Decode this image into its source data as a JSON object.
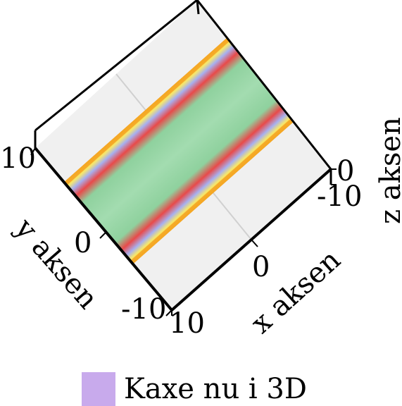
{
  "chart_data": {
    "type": "surface",
    "title": "",
    "xlabel": "x aksen",
    "ylabel": "y aksen",
    "zlabel": "z aksen",
    "xlim": [
      -10,
      10
    ],
    "ylim": [
      -10,
      10
    ],
    "zlim": [
      -10,
      0
    ],
    "x_ticks": [
      "-10",
      "0",
      "10"
    ],
    "y_ticks": [
      "-10",
      "0",
      "10"
    ],
    "z_ticks": [
      "-10",
      "0"
    ],
    "grid": true,
    "legend_position": "bottom-center",
    "series": [
      {
        "name": "Kaxe nu i 3D",
        "color": "#c8aaec"
      }
    ],
    "colorscale": [
      "#f5a623",
      "#f7e86b",
      "#a7b0f0",
      "#e84a4a",
      "#8fd19e"
    ]
  }
}
